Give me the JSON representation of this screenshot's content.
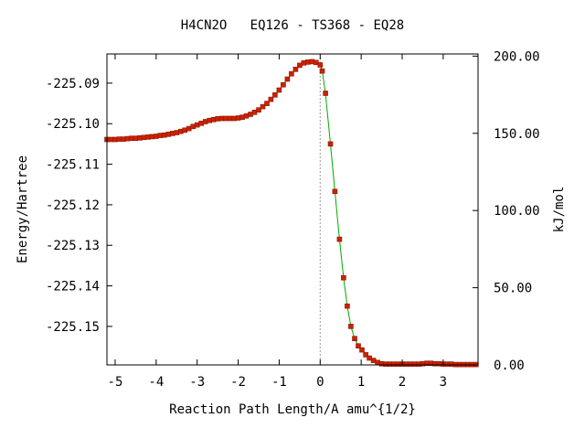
{
  "chart_data": {
    "type": "line",
    "title": "H4CN2O   EQ126 - TS368 - EQ28",
    "xlabel": "Reaction Path Length/A amu^{1/2}",
    "ylabel": "Energy/Hartree",
    "y2label": "kJ/mol",
    "xlim": [
      -5.2,
      3.85
    ],
    "ylim": [
      -225.1595,
      -225.0828
    ],
    "y2lim": [
      0,
      201.4
    ],
    "x_ticks": [
      "-5",
      "-4",
      "-3",
      "-2",
      "-1",
      "0",
      "1",
      "2",
      "3"
    ],
    "y_ticks": [
      "-225.09",
      "-225.10",
      "-225.11",
      "-225.12",
      "-225.13",
      "-225.14",
      "-225.15"
    ],
    "y2_ticks": [
      "200.00",
      "150.00",
      "100.00",
      "50.00",
      "0.00"
    ],
    "ts_marker_x": 0,
    "grid": false,
    "colors": {
      "line": "#00aa00",
      "marker": "#cc2200",
      "marker_edge": "#8a1500",
      "ts_line": "#999999"
    },
    "series": [
      {
        "x": [
          -5.2,
          -5.1,
          -5.0,
          -4.9,
          -4.8,
          -4.7,
          -4.6,
          -4.5,
          -4.4,
          -4.3,
          -4.2,
          -4.1,
          -4.0,
          -3.9,
          -3.8,
          -3.7,
          -3.6,
          -3.5,
          -3.4,
          -3.3,
          -3.2,
          -3.1,
          -3.0,
          -2.9,
          -2.8,
          -2.7,
          -2.6,
          -2.5,
          -2.4,
          -2.3,
          -2.2,
          -2.1,
          -2.0,
          -1.9,
          -1.8,
          -1.7,
          -1.6,
          -1.5,
          -1.4,
          -1.3,
          -1.2,
          -1.1,
          -1.0,
          -0.9,
          -0.8,
          -0.7,
          -0.6,
          -0.5,
          -0.4,
          -0.3,
          -0.2,
          -0.1,
          0.0,
          0.05,
          0.13,
          0.25,
          0.36,
          0.47,
          0.57,
          0.66,
          0.75,
          0.84,
          0.93,
          1.02,
          1.11,
          1.2,
          1.3,
          1.4,
          1.5,
          1.6,
          1.7,
          1.8,
          1.9,
          2.0,
          2.1,
          2.2,
          2.3,
          2.4,
          2.5,
          2.6,
          2.7,
          2.8,
          2.9,
          3.0,
          3.1,
          3.2,
          3.3,
          3.4,
          3.5,
          3.6,
          3.7,
          3.8
        ],
        "y": [
          -225.1039,
          -225.1039,
          -225.1039,
          -225.1038,
          -225.1038,
          -225.1037,
          -225.1036,
          -225.1036,
          -225.1035,
          -225.1034,
          -225.1033,
          -225.1032,
          -225.1031,
          -225.1029,
          -225.1028,
          -225.1026,
          -225.1024,
          -225.1022,
          -225.1019,
          -225.1016,
          -225.1012,
          -225.1007,
          -225.1003,
          -225.0999,
          -225.0995,
          -225.0992,
          -225.099,
          -225.0988,
          -225.0987,
          -225.0987,
          -225.0987,
          -225.0987,
          -225.0986,
          -225.0984,
          -225.0981,
          -225.0977,
          -225.0972,
          -225.0966,
          -225.0958,
          -225.095,
          -225.094,
          -225.0929,
          -225.0917,
          -225.0904,
          -225.089,
          -225.0877,
          -225.0866,
          -225.0856,
          -225.085,
          -225.0848,
          -225.0847,
          -225.0849,
          -225.0855,
          -225.087,
          -225.0925,
          -225.105,
          -225.1167,
          -225.1285,
          -225.138,
          -225.145,
          -225.15,
          -225.153,
          -225.1548,
          -225.1558,
          -225.157,
          -225.1578,
          -225.1584,
          -225.1589,
          -225.1592,
          -225.1593,
          -225.1593,
          -225.1593,
          -225.1593,
          -225.1593,
          -225.1593,
          -225.1593,
          -225.1593,
          -225.1593,
          -225.1592,
          -225.1591,
          -225.1591,
          -225.1592,
          -225.1592,
          -225.1593,
          -225.1593,
          -225.1593,
          -225.1594,
          -225.1594,
          -225.1594,
          -225.1594,
          -225.1594,
          -225.1594
        ]
      }
    ]
  }
}
